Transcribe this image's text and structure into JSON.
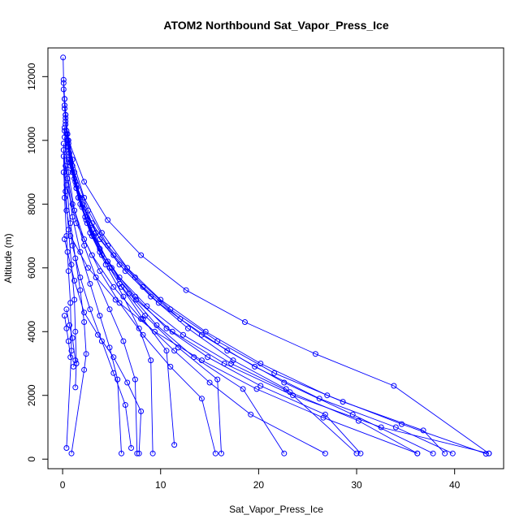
{
  "chart_data": {
    "type": "line",
    "title": "ATOM2 Northbound Sat_Vapor_Press_Ice",
    "xlabel": "Sat_Vapor_Press_Ice",
    "ylabel": "Altitude (m)",
    "xlim": [
      -1.5,
      45
    ],
    "ylim": [
      -300,
      12900
    ],
    "x_ticks": [
      0,
      10,
      20,
      30,
      40
    ],
    "y_ticks": [
      0,
      2000,
      4000,
      6000,
      8000,
      10000,
      12000
    ],
    "grid": false,
    "legend": "none",
    "series_color": "#0000ff",
    "series": [
      {
        "points": [
          [
            0.05,
            12600
          ],
          [
            0.1,
            11900
          ],
          [
            0.2,
            11300
          ],
          [
            0.3,
            10700
          ],
          [
            0.5,
            10000
          ],
          [
            1.0,
            9000
          ],
          [
            1.8,
            8000
          ],
          [
            3.0,
            7000
          ],
          [
            4.8,
            6000
          ],
          [
            7.5,
            5000
          ],
          [
            11.2,
            4000
          ],
          [
            16.5,
            3000
          ],
          [
            23.5,
            2000
          ],
          [
            32.5,
            1000
          ],
          [
            43.5,
            180
          ]
        ]
      },
      {
        "points": [
          [
            0.1,
            11800
          ],
          [
            0.2,
            11100
          ],
          [
            0.4,
            10300
          ],
          [
            0.8,
            9400
          ],
          [
            1.4,
            8500
          ],
          [
            2.4,
            7500
          ],
          [
            3.8,
            6600
          ],
          [
            5.8,
            5700
          ],
          [
            8.6,
            4800
          ],
          [
            12.3,
            3900
          ],
          [
            17.2,
            3000
          ],
          [
            23.2,
            2100
          ],
          [
            30.2,
            1200
          ],
          [
            36.2,
            180
          ]
        ]
      },
      {
        "points": [
          [
            0.1,
            11600
          ],
          [
            0.3,
            10800
          ],
          [
            0.6,
            9800
          ],
          [
            1.2,
            8800
          ],
          [
            2.0,
            7900
          ],
          [
            3.2,
            7000
          ],
          [
            5.0,
            6000
          ],
          [
            7.4,
            5100
          ],
          [
            10.6,
            4100
          ],
          [
            14.8,
            3200
          ],
          [
            20.2,
            2300
          ],
          [
            26.8,
            1400
          ],
          [
            30.4,
            180
          ]
        ]
      },
      {
        "points": [
          [
            0.2,
            11300
          ],
          [
            0.5,
            10200
          ],
          [
            1.0,
            9200
          ],
          [
            1.8,
            8200
          ],
          [
            3.0,
            7200
          ],
          [
            4.6,
            6200
          ],
          [
            6.8,
            5200
          ],
          [
            9.6,
            4200
          ],
          [
            13.4,
            3200
          ],
          [
            18.4,
            2200
          ],
          [
            22.6,
            180
          ]
        ]
      },
      {
        "points": [
          [
            0.2,
            11000
          ],
          [
            0.6,
            9900
          ],
          [
            1.3,
            8700
          ],
          [
            2.3,
            7600
          ],
          [
            3.8,
            6500
          ],
          [
            5.8,
            5500
          ],
          [
            8.4,
            4500
          ],
          [
            11.8,
            3500
          ],
          [
            15.8,
            2500
          ],
          [
            16.2,
            180
          ]
        ]
      },
      {
        "points": [
          [
            0.3,
            10800
          ],
          [
            0.7,
            9600
          ],
          [
            1.4,
            8500
          ],
          [
            2.5,
            7400
          ],
          [
            4.0,
            6400
          ],
          [
            6.0,
            5400
          ],
          [
            8.2,
            4400
          ],
          [
            10.6,
            3400
          ],
          [
            11.4,
            450
          ]
        ]
      },
      {
        "points": [
          [
            0.3,
            10500
          ],
          [
            0.8,
            9300
          ],
          [
            1.6,
            8200
          ],
          [
            2.8,
            7100
          ],
          [
            4.4,
            6100
          ],
          [
            6.2,
            5100
          ],
          [
            7.8,
            4100
          ],
          [
            9.0,
            3100
          ],
          [
            9.2,
            180
          ]
        ]
      },
      {
        "points": [
          [
            0.2,
            10300
          ],
          [
            0.6,
            9000
          ],
          [
            1.2,
            7800
          ],
          [
            2.2,
            6700
          ],
          [
            3.4,
            5700
          ],
          [
            4.8,
            4700
          ],
          [
            6.2,
            3700
          ],
          [
            7.4,
            2500
          ],
          [
            7.6,
            180
          ]
        ]
      },
      {
        "points": [
          [
            0.2,
            10100
          ],
          [
            0.5,
            8800
          ],
          [
            1.0,
            7600
          ],
          [
            1.8,
            6500
          ],
          [
            2.8,
            5500
          ],
          [
            3.8,
            4500
          ],
          [
            4.8,
            3500
          ],
          [
            5.6,
            2500
          ],
          [
            6.0,
            180
          ]
        ]
      },
      {
        "points": [
          [
            0.1,
            9900
          ],
          [
            0.4,
            8600
          ],
          [
            0.8,
            7400
          ],
          [
            1.3,
            6300
          ],
          [
            1.8,
            5300
          ],
          [
            2.2,
            4300
          ],
          [
            2.4,
            3300
          ],
          [
            2.2,
            2800
          ],
          [
            0.9,
            180
          ]
        ]
      },
      {
        "points": [
          [
            0.1,
            9700
          ],
          [
            0.3,
            8400
          ],
          [
            0.6,
            7200
          ],
          [
            0.9,
            6100
          ],
          [
            1.2,
            5000
          ],
          [
            1.3,
            4000
          ],
          [
            1.4,
            3000
          ],
          [
            1.3,
            2250
          ]
        ]
      },
      {
        "points": [
          [
            0.1,
            9500
          ],
          [
            0.2,
            8200
          ],
          [
            0.4,
            7000
          ],
          [
            0.6,
            5900
          ],
          [
            0.8,
            4900
          ],
          [
            0.9,
            3400
          ],
          [
            0.4,
            350
          ]
        ]
      },
      {
        "points": [
          [
            0.2,
            10400
          ],
          [
            0.8,
            9200
          ],
          [
            2.0,
            8000
          ],
          [
            3.8,
            6900
          ],
          [
            6.4,
            5900
          ],
          [
            9.8,
            4900
          ],
          [
            14.2,
            3900
          ],
          [
            19.6,
            2900
          ],
          [
            26.2,
            1900
          ],
          [
            34.0,
            1000
          ],
          [
            39.8,
            180
          ]
        ]
      },
      {
        "points": [
          [
            0.3,
            10600
          ],
          [
            1.0,
            9400
          ],
          [
            2.2,
            8200
          ],
          [
            4.0,
            7100
          ],
          [
            6.6,
            6000
          ],
          [
            10.0,
            5000
          ],
          [
            14.6,
            4000
          ],
          [
            20.2,
            3000
          ],
          [
            27.0,
            2000
          ],
          [
            34.6,
            1100
          ],
          [
            43.2,
            170
          ]
        ]
      },
      {
        "points": [
          [
            0.4,
            10200
          ],
          [
            1.2,
            9000
          ],
          [
            2.6,
            7800
          ],
          [
            4.6,
            6700
          ],
          [
            7.4,
            5700
          ],
          [
            11.0,
            4700
          ],
          [
            15.8,
            3700
          ],
          [
            21.6,
            2700
          ],
          [
            28.6,
            1800
          ],
          [
            36.8,
            900
          ],
          [
            39.0,
            180
          ]
        ]
      },
      {
        "points": [
          [
            0.5,
            9800
          ],
          [
            1.4,
            8600
          ],
          [
            3.0,
            7400
          ],
          [
            5.2,
            6400
          ],
          [
            8.2,
            5400
          ],
          [
            12.0,
            4400
          ],
          [
            16.8,
            3400
          ],
          [
            22.6,
            2400
          ],
          [
            29.6,
            1400
          ],
          [
            37.8,
            180
          ]
        ]
      },
      {
        "points": [
          [
            0.6,
            9400
          ],
          [
            1.6,
            8200
          ],
          [
            3.4,
            7100
          ],
          [
            5.8,
            6100
          ],
          [
            9.0,
            5100
          ],
          [
            12.8,
            4100
          ],
          [
            17.4,
            3100
          ],
          [
            22.8,
            2200
          ],
          [
            30.0,
            180
          ]
        ]
      },
      {
        "points": [
          [
            0.3,
            9200
          ],
          [
            1.0,
            8000
          ],
          [
            2.2,
            6900
          ],
          [
            3.8,
            5900
          ],
          [
            5.8,
            4900
          ],
          [
            8.2,
            3900
          ],
          [
            11.0,
            2900
          ],
          [
            14.2,
            1900
          ],
          [
            15.6,
            180
          ]
        ]
      },
      {
        "points": [
          [
            0.1,
            9000
          ],
          [
            0.4,
            7800
          ],
          [
            1.0,
            6700
          ],
          [
            1.8,
            5700
          ],
          [
            2.8,
            4700
          ],
          [
            4.0,
            3700
          ],
          [
            5.2,
            2700
          ],
          [
            6.4,
            1700
          ],
          [
            7.0,
            350
          ]
        ]
      },
      {
        "points": [
          [
            0.6,
            10000
          ],
          [
            2.2,
            8700
          ],
          [
            4.6,
            7500
          ],
          [
            8.0,
            6400
          ],
          [
            12.6,
            5300
          ],
          [
            18.6,
            4300
          ],
          [
            25.8,
            3300
          ],
          [
            33.8,
            2300
          ],
          [
            43.5,
            180
          ]
        ]
      },
      {
        "points": [
          [
            0.4,
            8600
          ],
          [
            1.4,
            7400
          ],
          [
            3.0,
            6400
          ],
          [
            5.2,
            5400
          ],
          [
            8.0,
            4400
          ],
          [
            11.4,
            3400
          ],
          [
            15.0,
            2400
          ],
          [
            19.2,
            1400
          ],
          [
            26.8,
            180
          ]
        ]
      },
      {
        "points": [
          [
            0.2,
            6900
          ],
          [
            0.5,
            6500
          ],
          [
            1.2,
            5600
          ],
          [
            2.2,
            4600
          ],
          [
            3.6,
            3900
          ],
          [
            5.2,
            3200
          ],
          [
            6.6,
            2400
          ],
          [
            8.0,
            1500
          ],
          [
            7.8,
            180
          ]
        ]
      },
      {
        "points": [
          [
            0.4,
            4700
          ],
          [
            0.7,
            4200
          ],
          [
            1.0,
            3800
          ],
          [
            1.3,
            3100
          ],
          [
            1.1,
            2900
          ]
        ]
      },
      {
        "points": [
          [
            0.8,
            7000
          ],
          [
            2.6,
            6000
          ],
          [
            5.4,
            5000
          ],
          [
            9.4,
            4000
          ],
          [
            14.2,
            3100
          ],
          [
            19.8,
            2200
          ],
          [
            26.6,
            1300
          ],
          [
            36.2,
            180
          ]
        ]
      },
      {
        "points": [
          [
            0.2,
            4500
          ],
          [
            0.4,
            4100
          ],
          [
            0.6,
            3700
          ],
          [
            0.8,
            3200
          ]
        ]
      }
    ]
  }
}
